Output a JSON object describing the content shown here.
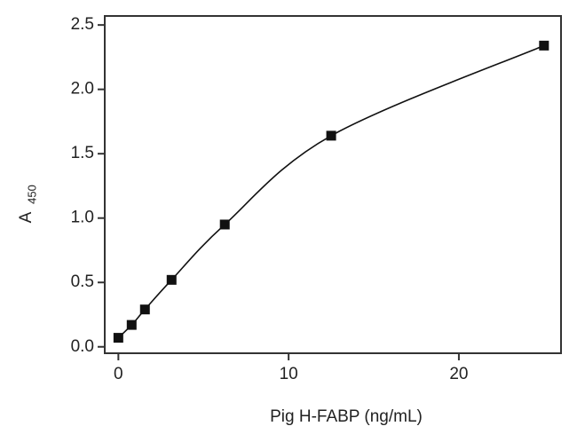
{
  "chart_data": {
    "type": "line",
    "xlabel": "Pig H-FABP (ng/mL)",
    "ylabel": "A",
    "ylabel_subscript": "450",
    "x": [
      0,
      0.78,
      1.56,
      3.125,
      6.25,
      12.5,
      25
    ],
    "series": [
      {
        "color": "#111111",
        "values": [
          0.07,
          0.17,
          0.29,
          0.52,
          0.95,
          1.64,
          2.34
        ]
      }
    ],
    "smooth": true,
    "markers": true,
    "xlim": [
      -0.8,
      26
    ],
    "xticks": [
      0,
      10,
      20
    ],
    "ylim": [
      -0.05,
      2.57
    ],
    "yticks": [
      {
        "value": 0,
        "label": "0.0"
      },
      0.5,
      {
        "value": 1,
        "label": "1.0"
      },
      1.5,
      {
        "value": 2,
        "label": "2.0"
      },
      2.5
    ],
    "grid": false
  }
}
